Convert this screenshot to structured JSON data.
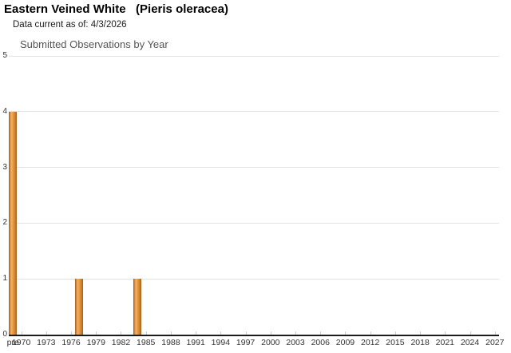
{
  "header": {
    "title": "Eastern Veined White   (Pieris oleracea)",
    "data_current_label": "Data current as of: 4/3/2026"
  },
  "chart_data": {
    "type": "bar",
    "title": "Submitted Observations by Year",
    "ylabel": "",
    "xlabel": "",
    "ylim": [
      0,
      5
    ],
    "y_ticks": [
      0,
      1,
      2,
      3,
      4,
      5
    ],
    "grid": "horizontal",
    "x_axis": {
      "pre_label": "pre",
      "pre_category": "pre 1970",
      "start_year": 1970,
      "end_year": 2027,
      "label_step": 3
    },
    "x_tick_labels": [
      "pre",
      "1970",
      "1973",
      "1976",
      "1979",
      "1982",
      "1985",
      "1988",
      "1991",
      "1994",
      "1997",
      "2000",
      "2003",
      "2006",
      "2009",
      "2012",
      "2015",
      "2018",
      "2021",
      "2024",
      "2027"
    ],
    "points": [
      {
        "label": "pre 1970",
        "value": 4
      },
      {
        "label": "1977",
        "value": 1
      },
      {
        "label": "1984",
        "value": 1
      }
    ],
    "colors": {
      "bar_edge": "#a05c1c",
      "bar_shade": "#c87c2e",
      "bar_highlight": "#f5b266",
      "bar_mid": "#e6993c",
      "grid": "#e2e2e2",
      "axis": "#1b1b1b",
      "tick": "#cccccc",
      "title_text": "#000000",
      "chart_title_text": "#555555",
      "axis_label_text": "#333333"
    }
  }
}
